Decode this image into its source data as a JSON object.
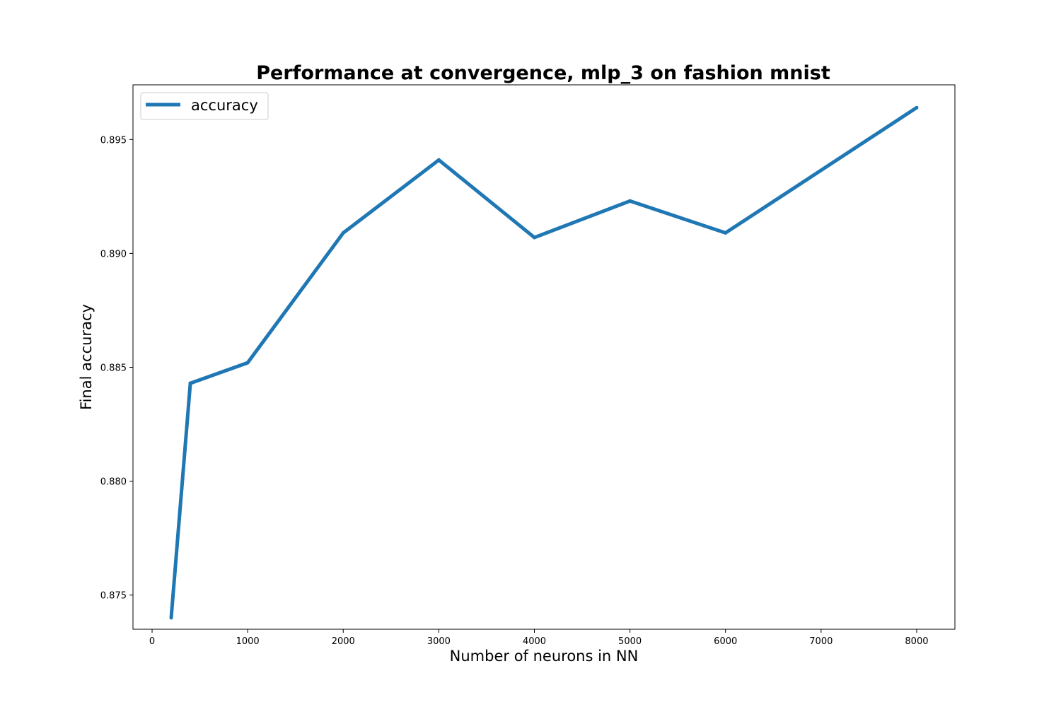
{
  "chart_data": {
    "type": "line",
    "title": "Performance at convergence, mlp_3 on fashion mnist",
    "xlabel": "Number of neurons in NN",
    "ylabel": "Final accuracy",
    "xlim": [
      -200,
      8400
    ],
    "ylim": [
      0.8735,
      0.8974
    ],
    "xticks": [
      0,
      1000,
      2000,
      3000,
      4000,
      5000,
      6000,
      7000,
      8000
    ],
    "xtick_labels": [
      "0",
      "1000",
      "2000",
      "3000",
      "4000",
      "5000",
      "6000",
      "7000",
      "8000"
    ],
    "yticks": [
      0.875,
      0.88,
      0.885,
      0.89,
      0.895
    ],
    "ytick_labels": [
      "0.875",
      "0.880",
      "0.885",
      "0.890",
      "0.895"
    ],
    "grid": false,
    "legend_position": "top-left",
    "series": [
      {
        "name": "accuracy",
        "color": "#1f77b4",
        "x": [
          200,
          400,
          1000,
          2000,
          3000,
          4000,
          5000,
          6000,
          8000
        ],
        "y": [
          0.874,
          0.8843,
          0.8852,
          0.8909,
          0.8941,
          0.8907,
          0.8923,
          0.8909,
          0.8964
        ]
      }
    ]
  }
}
